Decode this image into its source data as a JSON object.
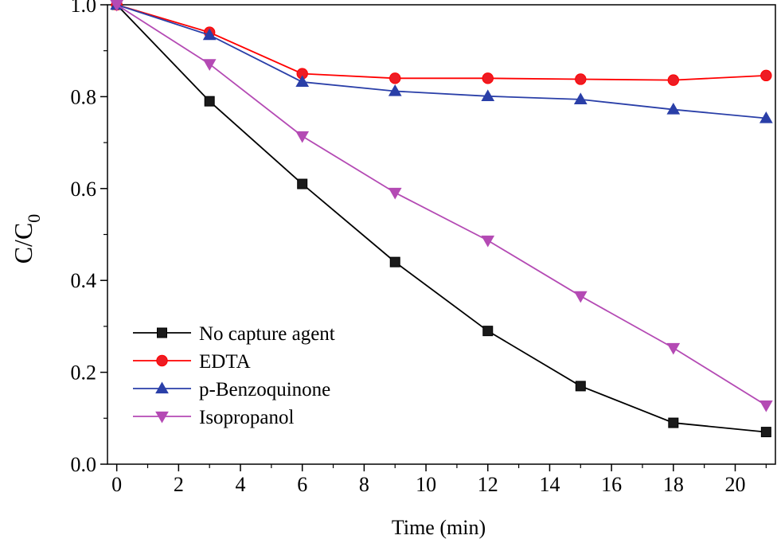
{
  "chart_data": {
    "type": "line",
    "title": "",
    "xlabel": "Time (min)",
    "ylabel_main": "C/C",
    "ylabel_sub": "0",
    "xlim": [
      -0.3,
      21.3
    ],
    "ylim": [
      0,
      1.0
    ],
    "xticks": [
      0,
      2,
      4,
      6,
      8,
      10,
      12,
      14,
      16,
      18,
      20
    ],
    "yticks": [
      "0.0",
      "0.2",
      "0.4",
      "0.6",
      "0.8",
      "1.0"
    ],
    "x": [
      0,
      3,
      6,
      9,
      12,
      15,
      18,
      21
    ],
    "legend_position": "bottom-left",
    "series": [
      {
        "name": "No capture agent",
        "color": "#000000",
        "fill": "#1a1a1a",
        "marker": "square",
        "values": [
          1.0,
          0.79,
          0.61,
          0.44,
          0.29,
          0.17,
          0.09,
          0.07
        ]
      },
      {
        "name": "EDTA",
        "color": "#ff0000",
        "fill": "#ee1c24",
        "marker": "circle",
        "values": [
          1.0,
          0.94,
          0.85,
          0.84,
          0.84,
          0.838,
          0.836,
          0.846
        ]
      },
      {
        "name": "p-Benzoquinone",
        "color": "#2a3fa8",
        "fill": "#2a3fa8",
        "marker": "triangle-up",
        "values": [
          1.0,
          0.934,
          0.832,
          0.812,
          0.801,
          0.794,
          0.772,
          0.753
        ]
      },
      {
        "name": "Isopropanol",
        "color": "#b44ab4",
        "fill": "#b44ab4",
        "marker": "triangle-down",
        "values": [
          1.0,
          0.871,
          0.714,
          0.591,
          0.487,
          0.366,
          0.253,
          0.128
        ]
      }
    ]
  }
}
